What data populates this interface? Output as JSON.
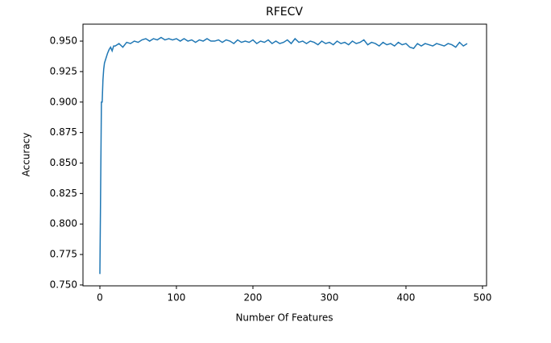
{
  "chart_data": {
    "type": "line",
    "title": "RFECV",
    "xlabel": "Number Of Features",
    "ylabel": "Accuracy",
    "x": [
      0,
      1,
      2,
      3,
      4,
      5,
      6,
      8,
      10,
      12,
      14,
      16,
      18,
      20,
      25,
      30,
      35,
      40,
      45,
      50,
      55,
      60,
      65,
      70,
      75,
      80,
      85,
      90,
      95,
      100,
      105,
      110,
      115,
      120,
      125,
      130,
      135,
      140,
      145,
      150,
      155,
      160,
      165,
      170,
      175,
      180,
      185,
      190,
      195,
      200,
      205,
      210,
      215,
      220,
      225,
      230,
      235,
      240,
      245,
      250,
      255,
      260,
      265,
      270,
      275,
      280,
      285,
      290,
      295,
      300,
      305,
      310,
      315,
      320,
      325,
      330,
      335,
      340,
      345,
      350,
      355,
      360,
      365,
      370,
      375,
      380,
      385,
      390,
      395,
      400,
      405,
      410,
      415,
      420,
      425,
      430,
      435,
      440,
      445,
      450,
      455,
      460,
      465,
      470,
      475,
      480
    ],
    "series": [
      {
        "name": "Accuracy",
        "color": "#1f77b4",
        "values": [
          0.759,
          0.83,
          0.9,
          0.9,
          0.918,
          0.927,
          0.932,
          0.936,
          0.94,
          0.943,
          0.945,
          0.942,
          0.946,
          0.946,
          0.948,
          0.945,
          0.949,
          0.948,
          0.95,
          0.949,
          0.951,
          0.952,
          0.95,
          0.952,
          0.951,
          0.953,
          0.951,
          0.952,
          0.951,
          0.952,
          0.95,
          0.952,
          0.95,
          0.951,
          0.949,
          0.951,
          0.95,
          0.952,
          0.95,
          0.95,
          0.951,
          0.949,
          0.951,
          0.95,
          0.948,
          0.951,
          0.949,
          0.95,
          0.949,
          0.951,
          0.948,
          0.95,
          0.949,
          0.951,
          0.948,
          0.95,
          0.948,
          0.949,
          0.951,
          0.948,
          0.952,
          0.949,
          0.95,
          0.948,
          0.95,
          0.949,
          0.947,
          0.95,
          0.948,
          0.949,
          0.947,
          0.95,
          0.948,
          0.949,
          0.947,
          0.95,
          0.948,
          0.949,
          0.951,
          0.947,
          0.949,
          0.948,
          0.946,
          0.949,
          0.947,
          0.948,
          0.946,
          0.949,
          0.947,
          0.948,
          0.945,
          0.944,
          0.948,
          0.946,
          0.948,
          0.947,
          0.946,
          0.948,
          0.947,
          0.946,
          0.948,
          0.947,
          0.945,
          0.949,
          0.946,
          0.948
        ]
      }
    ],
    "xlim": [
      -22.1,
      505.3
    ],
    "ylim": [
      0.7493,
      0.9639
    ],
    "xticks": [
      0,
      100,
      200,
      300,
      400,
      500
    ],
    "yticks": [
      {
        "value": 0.75,
        "label": "0.750"
      },
      {
        "value": 0.775,
        "label": "0.775"
      },
      {
        "value": 0.8,
        "label": "0.800"
      },
      {
        "value": 0.825,
        "label": "0.825"
      },
      {
        "value": 0.85,
        "label": "0.850"
      },
      {
        "value": 0.875,
        "label": "0.875"
      },
      {
        "value": 0.9,
        "label": "0.900"
      },
      {
        "value": 0.925,
        "label": "0.925"
      },
      {
        "value": 0.95,
        "label": "0.950"
      }
    ]
  }
}
